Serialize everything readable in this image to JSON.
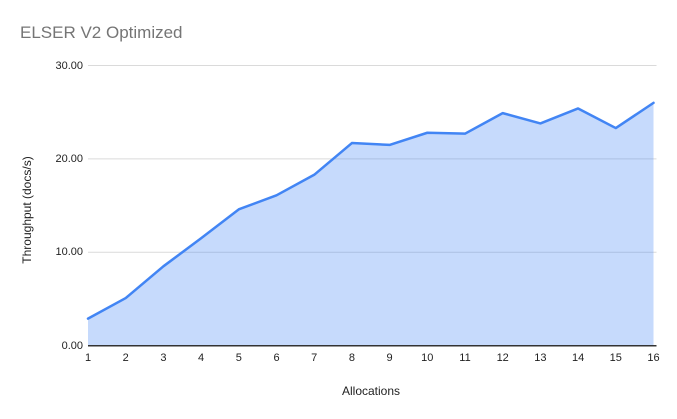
{
  "chart": {
    "colors": {
      "background": "#ffffff",
      "line": "#4285f4",
      "fill": "rgba(66,133,244,0.3)",
      "grid": "#dadada",
      "axis_line": "#333333",
      "title_text": "#757575",
      "tick_text": "#1f1f1f",
      "label_text": "#1f1f1f"
    }
  },
  "chart_data": {
    "type": "area",
    "title": "ELSER V2 Optimized",
    "xlabel": "Allocations",
    "ylabel": "Throughput (docs/s)",
    "x": [
      1,
      2,
      3,
      4,
      5,
      6,
      7,
      8,
      9,
      10,
      11,
      12,
      13,
      14,
      15,
      16
    ],
    "series": [
      {
        "name": "Throughput (docs/s)",
        "values": [
          2.9,
          5.1,
          8.5,
          11.5,
          14.6,
          16.1,
          18.3,
          21.7,
          21.5,
          22.8,
          22.7,
          24.9,
          23.8,
          25.4,
          23.3,
          26.0
        ]
      }
    ],
    "xlim": [
      1,
      16
    ],
    "ylim": [
      0,
      30
    ],
    "yticks": [
      0,
      10,
      20,
      30
    ],
    "ytick_labels": [
      "0.00",
      "10.00",
      "20.00",
      "30.00"
    ],
    "xtick_labels": [
      "1",
      "2",
      "3",
      "4",
      "5",
      "6",
      "7",
      "8",
      "9",
      "10",
      "11",
      "12",
      "13",
      "14",
      "15",
      "16"
    ],
    "grid": "horizontal-major",
    "legend": "none"
  }
}
